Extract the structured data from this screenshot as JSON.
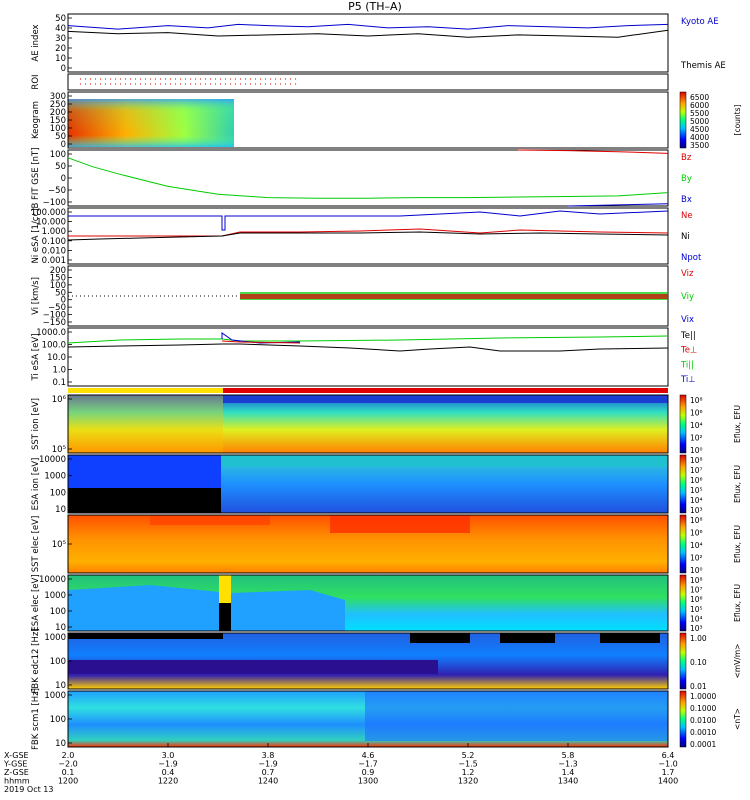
{
  "title": "P5 (TH–A)",
  "colors": {
    "blue": "#0000cc",
    "red": "#dd0000",
    "green": "#00cc00",
    "black": "#000000",
    "spectro_bg": "#2f8ff0"
  },
  "panels": [
    {
      "id": "ae",
      "ylabel": "AE index",
      "ticks": [
        "50",
        "40",
        "30",
        "20",
        "10",
        "0"
      ],
      "legend": [
        {
          "text": "Kyoto AE",
          "color": "#0000cc"
        },
        {
          "text": "Themis AE",
          "color": "#000000"
        }
      ]
    },
    {
      "id": "roi",
      "ylabel": "ROI",
      "ticks": [],
      "legend": []
    },
    {
      "id": "keogram",
      "ylabel": "Keogram",
      "ticks": [
        "300",
        "250",
        "200",
        "150",
        "100",
        "50",
        "0"
      ],
      "legend": []
    },
    {
      "id": "bfield",
      "ylabel": "B FIT GSE [nT]",
      "ticks": [
        "100",
        "50",
        "0",
        "−50",
        "−100"
      ],
      "legend": [
        {
          "text": "Bz",
          "color": "#dd0000"
        },
        {
          "text": "By",
          "color": "#00cc00"
        },
        {
          "text": "Bx",
          "color": "#0000cc"
        }
      ]
    },
    {
      "id": "density",
      "ylabel": "Ni eSA [1/cc]",
      "ticks": [
        "100.000",
        "10.000",
        "1.000",
        "0.100",
        "0.010",
        "0.001"
      ],
      "legend": [
        {
          "text": "Ne",
          "color": "#dd0000"
        },
        {
          "text": "Ni",
          "color": "#000000"
        },
        {
          "text": "Npot",
          "color": "#0000cc"
        }
      ]
    },
    {
      "id": "velocity",
      "ylabel": "Vi [km/s]",
      "ticks": [
        "200",
        "150",
        "100",
        "50",
        "0",
        "−50",
        "−100",
        "−150"
      ],
      "legend": [
        {
          "text": "Viz",
          "color": "#dd0000"
        },
        {
          "text": "Viy",
          "color": "#00cc00"
        },
        {
          "text": "Vix",
          "color": "#0000cc"
        }
      ]
    },
    {
      "id": "temperature",
      "ylabel": "Ti eSA [eV]",
      "ticks": [
        "1000.0",
        "100.0",
        "10.0",
        "1.0",
        "0.1"
      ],
      "legend": [
        {
          "text": "Te||",
          "color": "#000000"
        },
        {
          "text": "Te⊥",
          "color": "#dd0000"
        },
        {
          "text": "Ti||",
          "color": "#00cc00"
        },
        {
          "text": "Ti⊥",
          "color": "#0000cc"
        }
      ]
    },
    {
      "id": "sst_i",
      "ylabel": "SST ion [eV]",
      "ticks": [
        "10⁶",
        "10⁵"
      ],
      "legend": []
    },
    {
      "id": "esa_i",
      "ylabel": "ESA ion [eV]",
      "ticks": [
        "10000",
        "1000",
        "100",
        "10"
      ],
      "legend": []
    },
    {
      "id": "sst_e",
      "ylabel": "SST elec [eV]",
      "ticks": [
        "10⁵"
      ],
      "legend": []
    },
    {
      "id": "esa_e",
      "ylabel": "ESA elec [eV]",
      "ticks": [
        "10000",
        "1000",
        "100",
        "10"
      ],
      "legend": []
    },
    {
      "id": "fbk_e",
      "ylabel": "FBK edc12 [Hz]",
      "ticks": [
        "1000",
        "100",
        "10"
      ],
      "legend": []
    },
    {
      "id": "fbk_b",
      "ylabel": "FBK scm1 [Hz]",
      "ticks": [
        "1000",
        "100",
        "10"
      ],
      "legend": []
    }
  ],
  "colorbars": [
    {
      "id": "cb-keogram",
      "labels": [
        "6500",
        "6000",
        "5500",
        "5000",
        "4500",
        "4000",
        "3500"
      ],
      "unit": "[counts]"
    },
    {
      "id": "cb-sst-i",
      "labels": [
        "10⁸",
        "10⁶",
        "10⁴",
        "10²",
        "10⁰"
      ],
      "unit": "Eflux, EFU"
    },
    {
      "id": "cb-esa-i",
      "labels": [
        "10⁸",
        "10⁷",
        "10⁶",
        "10⁵",
        "10⁴",
        "10³"
      ],
      "unit": "Eflux, EFU"
    },
    {
      "id": "cb-sst-e",
      "labels": [
        "10⁸",
        "10⁶",
        "10⁴",
        "10²",
        "10⁰"
      ],
      "unit": "Eflux, EFU"
    },
    {
      "id": "cb-esa-e",
      "labels": [
        "10⁸",
        "10⁷",
        "10⁶",
        "10⁵",
        "10⁴",
        "10³"
      ],
      "unit": "Eflux, EFU"
    },
    {
      "id": "cb-fbk-e",
      "labels": [
        "1.00",
        "0.10",
        "0.01"
      ],
      "unit": "<mV/m>"
    },
    {
      "id": "cb-fbk-b",
      "labels": [
        "1.0000",
        "0.1000",
        "0.0100",
        "0.0010",
        "0.0001"
      ],
      "unit": "<nT>"
    }
  ],
  "chart_data": {
    "type": "line",
    "title": "P5 (TH–A)",
    "x_label_rows": [
      "X-GSE",
      "Y-GSE",
      "Z-GSE",
      "hhmm",
      "2019 Oct 13"
    ],
    "x_columns": [
      {
        "x": "2.0",
        "y": "−2.0",
        "z": "0.1",
        "hhmm": "1200"
      },
      {
        "x": "3.0",
        "y": "−1.9",
        "z": "0.4",
        "hhmm": "1220"
      },
      {
        "x": "3.8",
        "y": "−1.9",
        "z": "0.7",
        "hhmm": "1240"
      },
      {
        "x": "4.6",
        "y": "−1.7",
        "z": "0.9",
        "hhmm": "1300"
      },
      {
        "x": "5.2",
        "y": "−1.5",
        "z": "1.2",
        "hhmm": "1320"
      },
      {
        "x": "5.8",
        "y": "−1.3",
        "z": "1.4",
        "hhmm": "1340"
      },
      {
        "x": "6.4",
        "y": "−1.0",
        "z": "1.7",
        "hhmm": "1400"
      }
    ],
    "x_minutes": [
      0,
      20,
      40,
      60,
      80,
      100,
      120
    ],
    "series": [
      {
        "panel": "ae",
        "name": "Kyoto AE",
        "ylim": [
          0,
          50
        ],
        "x": [
          0,
          10,
          20,
          28,
          34,
          40,
          48,
          56,
          64,
          72,
          80,
          88,
          96,
          104,
          112,
          120
        ],
        "y": [
          40,
          37,
          40,
          38,
          41,
          40,
          39,
          41,
          38,
          39,
          37,
          40,
          39,
          38,
          40,
          41
        ]
      },
      {
        "panel": "ae",
        "name": "Themis AE",
        "ylim": [
          0,
          50
        ],
        "x": [
          0,
          10,
          20,
          30,
          40,
          50,
          60,
          70,
          80,
          90,
          100,
          110,
          120
        ],
        "y": [
          35,
          33,
          34,
          31,
          32,
          33,
          31,
          33,
          30,
          32,
          31,
          30,
          36
        ]
      },
      {
        "panel": "bfield",
        "name": "By",
        "ylim": [
          -100,
          100
        ],
        "x": [
          0,
          5,
          10,
          20,
          30,
          40,
          50,
          60,
          70,
          80,
          90,
          100,
          110,
          120
        ],
        "y": [
          72,
          40,
          15,
          -30,
          -58,
          -70,
          -72,
          -72,
          -70,
          -70,
          -68,
          -66,
          -64,
          -52
        ]
      },
      {
        "panel": "bfield",
        "name": "Bz",
        "ylim": [
          -100,
          100
        ],
        "x": [
          90,
          100,
          110,
          120
        ],
        "y": [
          100,
          98,
          94,
          88
        ]
      },
      {
        "panel": "bfield",
        "name": "Bx",
        "ylim": [
          -100,
          100
        ],
        "x": [
          100,
          110,
          120
        ],
        "y": [
          -100,
          -96,
          -92
        ]
      }
    ]
  }
}
